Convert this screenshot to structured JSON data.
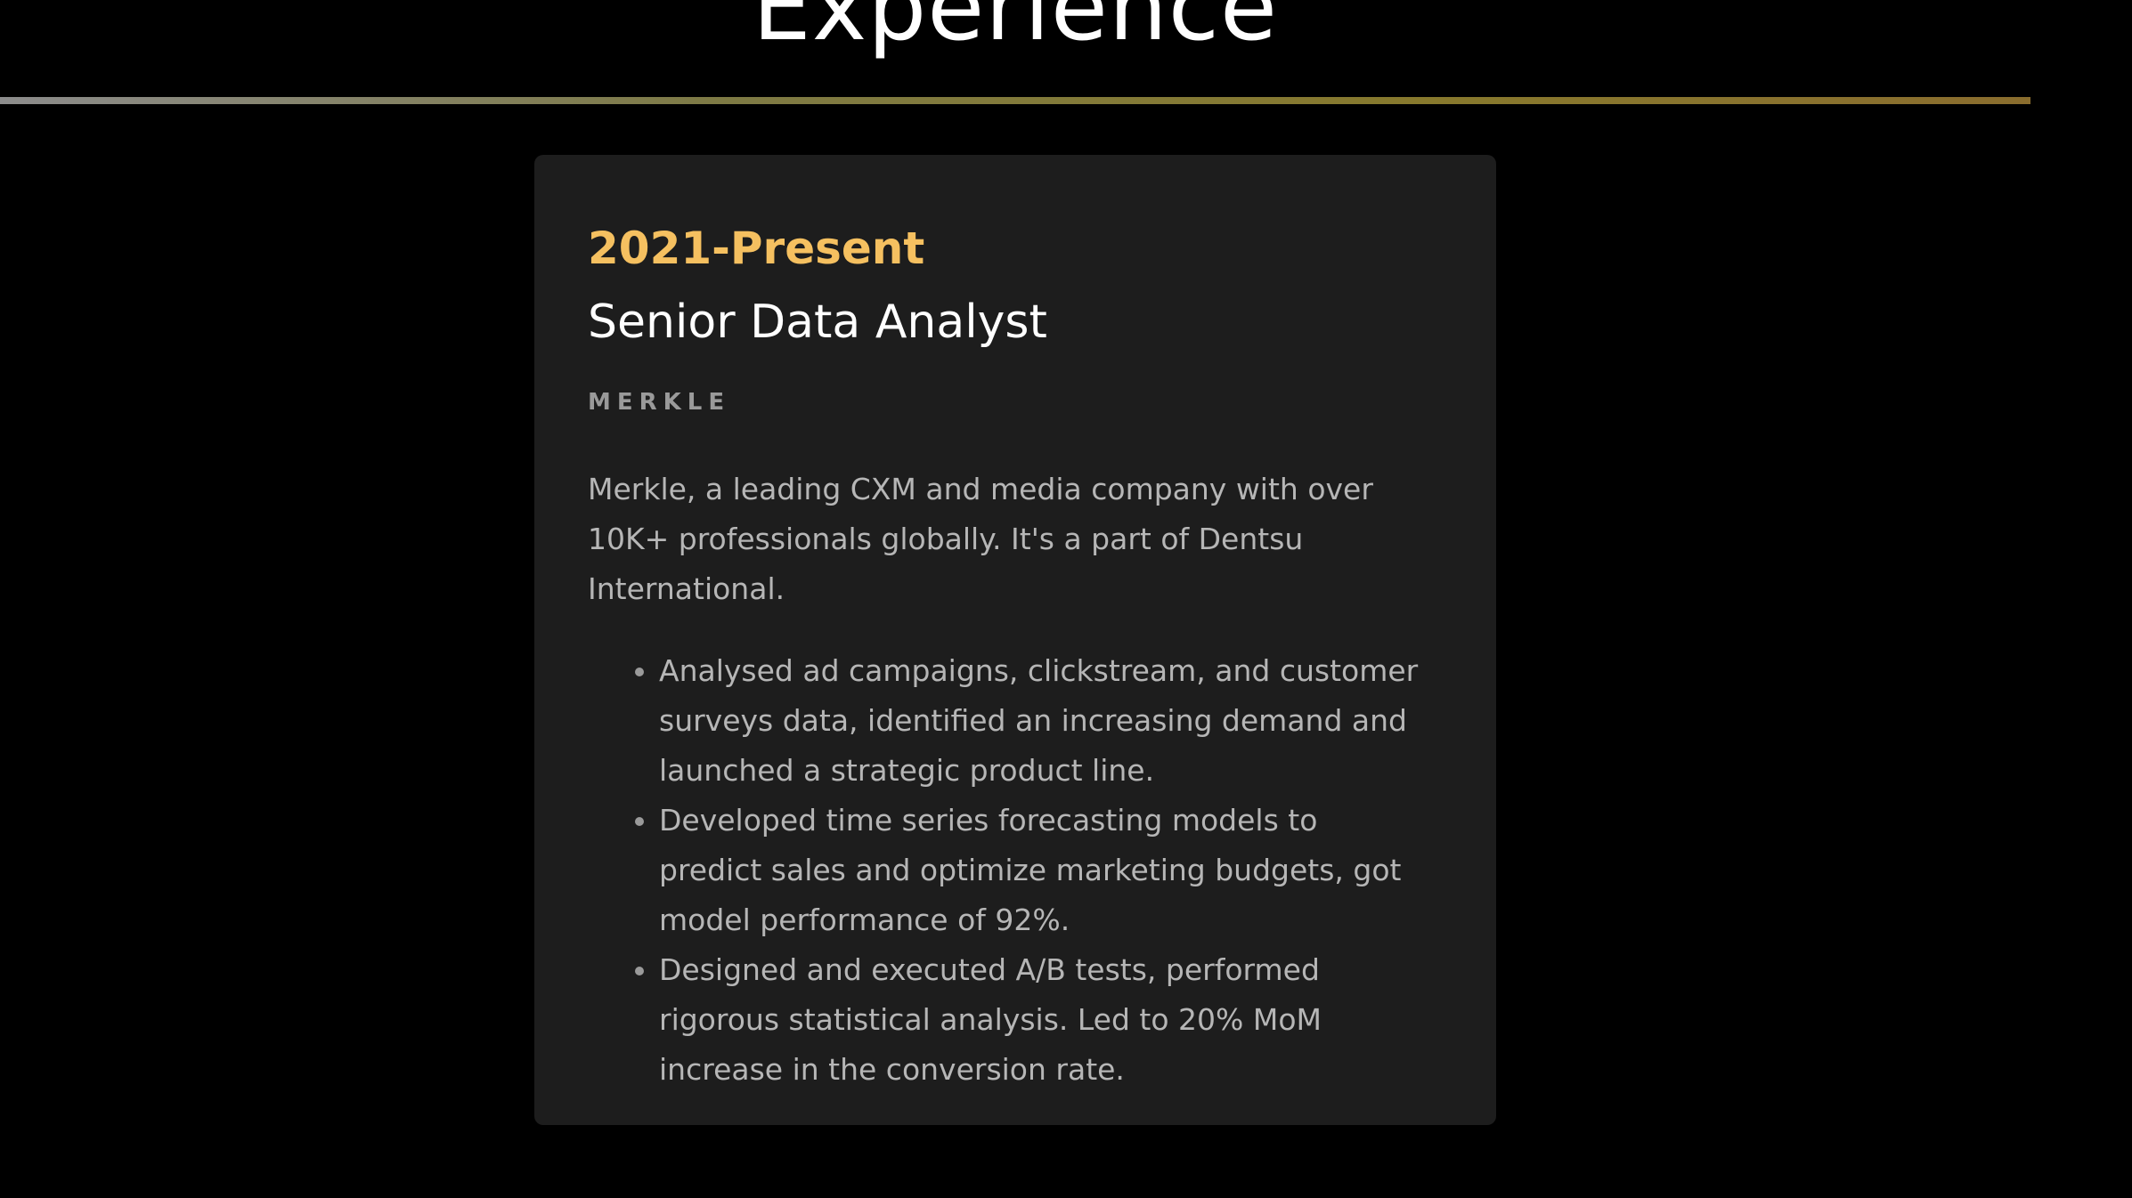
{
  "section": {
    "title": "Experience"
  },
  "experience": {
    "period": "2021-Present",
    "role": "Senior Data Analyst",
    "company": "MERKLE",
    "summary": "Merkle, a leading CXM and media company with over 10K+ professionals globally. It's a part of Dentsu International.",
    "bullets": [
      "Analysed ad campaigns, clickstream, and customer surveys data, identified an increasing demand and launched a strategic product line.",
      "Developed time series forecasting models to predict sales and optimize marketing budgets, got model performance of 92%.",
      "Designed and executed A/B tests, performed rigorous statistical analysis. Led to 20% MoM increase in the conversion rate."
    ]
  },
  "colors": {
    "background": "#000000",
    "card": "#1d1d1d",
    "accent": "#f5c060",
    "text_muted": "#b6b6b6"
  }
}
